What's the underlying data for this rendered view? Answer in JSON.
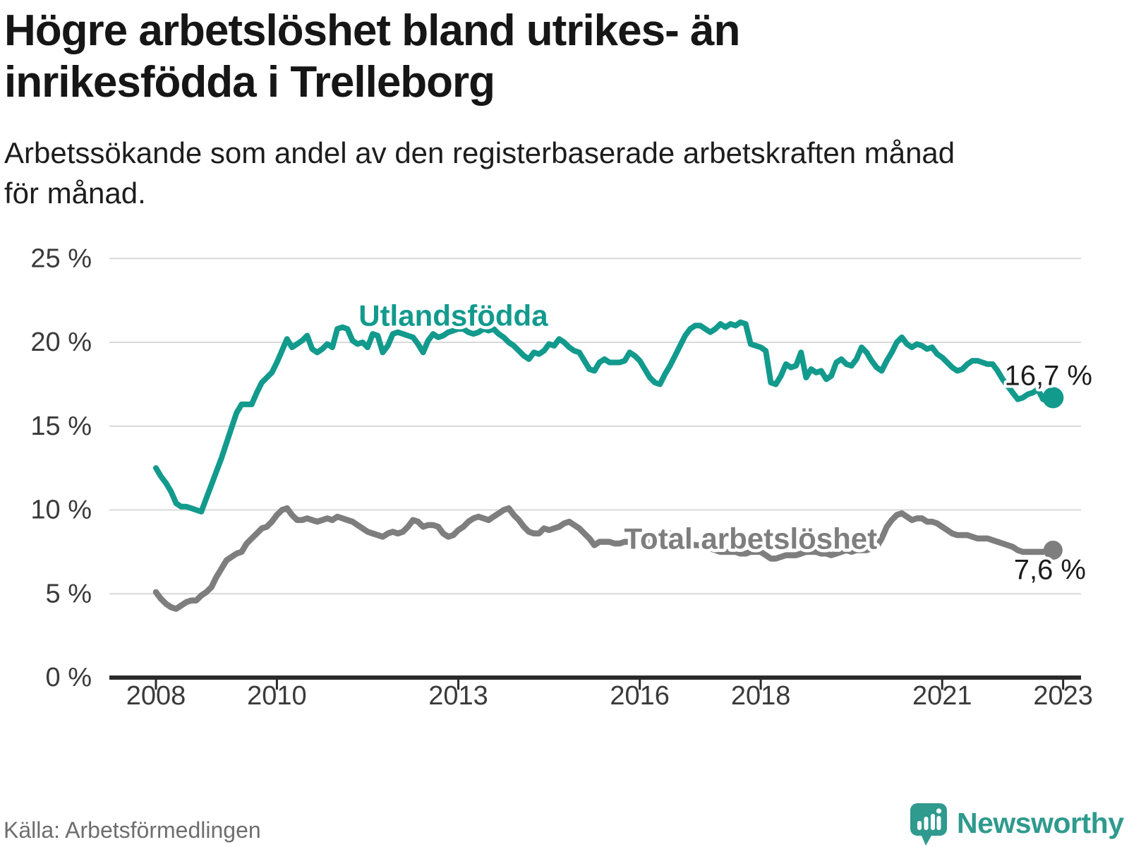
{
  "header": {
    "title_line1": "Högre arbetslöshet bland utrikes- än",
    "title_line2": "inrikesfödda i Trelleborg",
    "subtitle_line1": "Arbetssökande som andel av den registerbaserade arbetskraften månad",
    "subtitle_line2": "för månad."
  },
  "footer": {
    "source": "Källa: Arbetsförmedlingen",
    "logo_text": "Newsworthy",
    "logo_icon": "newsworthy-pin-barchart-icon"
  },
  "colors": {
    "accent_teal": "#129a8d",
    "series_gray": "#7e7e7e",
    "axis_dark": "#2a2a2a",
    "gridline": "#d9d9d9",
    "text_dark": "#1c1c1c",
    "tick_label": "#3a3a3a",
    "logo_teal": "#2f9a8e"
  },
  "chart_data": {
    "type": "line",
    "x_unit": "month",
    "start_month": "2008-01",
    "end_month": "2022-11",
    "grid": true,
    "legend_position": "inline-labels",
    "ylim": [
      0,
      25
    ],
    "y_ticks": [
      {
        "value": 0,
        "label": "0 %"
      },
      {
        "value": 5,
        "label": "5 %"
      },
      {
        "value": 10,
        "label": "10 %"
      },
      {
        "value": 15,
        "label": "15 %"
      },
      {
        "value": 20,
        "label": "20 %"
      },
      {
        "value": 25,
        "label": "25 %"
      }
    ],
    "x_ticks": [
      {
        "year": 2008,
        "label": "2008"
      },
      {
        "year": 2010,
        "label": "2010"
      },
      {
        "year": 2013,
        "label": "2013"
      },
      {
        "year": 2016,
        "label": "2016"
      },
      {
        "year": 2018,
        "label": "2018"
      },
      {
        "year": 2021,
        "label": "2021"
      },
      {
        "year": 2023,
        "label": "2023"
      }
    ],
    "series": [
      {
        "name": "Utlandsfödda",
        "color": "#129a8d",
        "stroke_width": 8,
        "dot_radius": 15,
        "end_label": "16,7 %",
        "end_value": 16.7,
        "end_label_anchor_x": 1548,
        "end_label_dy": -31,
        "label": {
          "month_index": 59,
          "value": 21.6
        },
        "values": [
          12.5,
          12.0,
          11.6,
          11.1,
          10.4,
          10.2,
          10.2,
          10.1,
          10.0,
          9.9,
          10.7,
          11.5,
          12.3,
          13.1,
          14.0,
          14.9,
          15.8,
          16.3,
          16.3,
          16.3,
          17.0,
          17.6,
          17.9,
          18.2,
          18.8,
          19.5,
          20.2,
          19.7,
          19.9,
          20.1,
          20.4,
          19.6,
          19.4,
          19.6,
          19.9,
          19.7,
          20.8,
          20.9,
          20.8,
          20.1,
          19.9,
          20.0,
          19.7,
          20.5,
          20.4,
          19.4,
          19.8,
          20.5,
          20.6,
          20.5,
          20.4,
          20.3,
          19.9,
          19.4,
          20.1,
          20.5,
          20.3,
          20.4,
          20.6,
          20.7,
          20.8,
          20.8,
          20.6,
          20.5,
          20.6,
          20.8,
          20.7,
          20.8,
          20.5,
          20.3,
          20.0,
          19.8,
          19.5,
          19.2,
          19.0,
          19.4,
          19.3,
          19.5,
          19.9,
          19.8,
          20.2,
          20.0,
          19.7,
          19.5,
          19.4,
          18.9,
          18.4,
          18.3,
          18.8,
          19.0,
          18.8,
          18.8,
          18.8,
          18.9,
          19.4,
          19.2,
          18.9,
          18.4,
          17.9,
          17.6,
          17.5,
          18.1,
          18.6,
          19.2,
          19.8,
          20.4,
          20.8,
          21.0,
          21.0,
          20.8,
          20.6,
          20.8,
          21.1,
          20.9,
          21.1,
          21.0,
          21.2,
          21.1,
          19.9,
          19.8,
          19.7,
          19.5,
          17.6,
          17.5,
          18.0,
          18.7,
          18.5,
          18.6,
          19.4,
          17.9,
          18.4,
          18.2,
          18.3,
          17.8,
          18.0,
          18.8,
          19.0,
          18.7,
          18.6,
          19.0,
          19.7,
          19.4,
          18.9,
          18.5,
          18.3,
          18.9,
          19.4,
          20.0,
          20.3,
          19.9,
          19.7,
          19.9,
          19.8,
          19.6,
          19.7,
          19.3,
          19.1,
          18.8,
          18.5,
          18.3,
          18.4,
          18.7,
          18.9,
          18.9,
          18.8,
          18.7,
          18.7,
          18.3,
          17.8,
          17.4,
          17.0,
          16.6,
          16.7,
          16.9,
          17.0,
          17.2,
          16.6,
          16.5,
          16.7
        ]
      },
      {
        "name": "Total arbetslöshet",
        "color": "#7e7e7e",
        "stroke_width": 8.5,
        "dot_radius": 13.5,
        "end_label": "7,6 %",
        "end_value": 7.6,
        "end_label_anchor_x": 1539,
        "end_label_dy": 28,
        "label": {
          "month_index": 118,
          "value": 8.3
        },
        "values": [
          5.1,
          4.7,
          4.4,
          4.2,
          4.1,
          4.3,
          4.5,
          4.6,
          4.6,
          4.9,
          5.1,
          5.4,
          6.0,
          6.5,
          7.0,
          7.2,
          7.4,
          7.5,
          8.0,
          8.3,
          8.6,
          8.9,
          9.0,
          9.3,
          9.7,
          10.0,
          10.1,
          9.7,
          9.4,
          9.4,
          9.5,
          9.4,
          9.3,
          9.4,
          9.5,
          9.4,
          9.6,
          9.5,
          9.4,
          9.3,
          9.1,
          8.9,
          8.7,
          8.6,
          8.5,
          8.4,
          8.6,
          8.7,
          8.6,
          8.7,
          9.0,
          9.4,
          9.3,
          9.0,
          9.1,
          9.1,
          9.0,
          8.6,
          8.4,
          8.5,
          8.8,
          9.0,
          9.3,
          9.5,
          9.6,
          9.5,
          9.4,
          9.6,
          9.8,
          10.0,
          10.1,
          9.7,
          9.4,
          9.0,
          8.7,
          8.6,
          8.6,
          8.9,
          8.8,
          8.9,
          9.0,
          9.2,
          9.3,
          9.1,
          8.9,
          8.6,
          8.3,
          7.9,
          8.1,
          8.1,
          8.1,
          8.0,
          8.0,
          8.1,
          8.1,
          8.1,
          8.2,
          8.1,
          8.2,
          8.3,
          8.4,
          8.5,
          8.6,
          8.5,
          8.4,
          8.2,
          8.0,
          7.9,
          7.9,
          7.8,
          7.7,
          7.6,
          7.5,
          7.5,
          7.5,
          7.5,
          7.4,
          7.4,
          7.5,
          7.5,
          7.5,
          7.3,
          7.1,
          7.1,
          7.2,
          7.3,
          7.3,
          7.3,
          7.4,
          7.5,
          7.5,
          7.5,
          7.4,
          7.4,
          7.3,
          7.4,
          7.5,
          7.6,
          7.5,
          7.6,
          7.6,
          7.6,
          7.7,
          7.8,
          8.3,
          9.0,
          9.4,
          9.7,
          9.8,
          9.6,
          9.4,
          9.5,
          9.5,
          9.3,
          9.3,
          9.2,
          9.0,
          8.8,
          8.6,
          8.5,
          8.5,
          8.5,
          8.4,
          8.3,
          8.3,
          8.3,
          8.2,
          8.1,
          8.0,
          7.9,
          7.8,
          7.6,
          7.5,
          7.5,
          7.5,
          7.5,
          7.5,
          7.6,
          7.6
        ]
      }
    ]
  }
}
